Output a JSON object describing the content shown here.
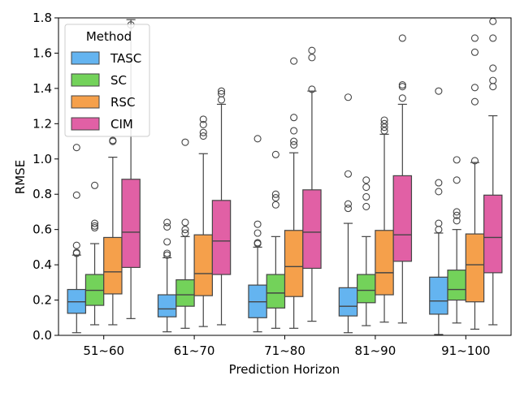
{
  "chart_data": {
    "type": "boxplot",
    "title": "",
    "xlabel": "Prediction Horizon",
    "ylabel": "RMSE",
    "ylim": [
      0,
      1.8
    ],
    "yticks": [
      "0.0",
      "0.2",
      "0.4",
      "0.6",
      "0.8",
      "1.0",
      "1.2",
      "1.4",
      "1.6",
      "1.8"
    ],
    "categories": [
      "51~60",
      "61~70",
      "71~80",
      "81~90",
      "91~100"
    ],
    "legend": {
      "title": "Method",
      "position": "top-left"
    },
    "series": [
      {
        "name": "TASC",
        "color": "#64b4f0",
        "boxes": [
          {
            "whisker_low": 0.015,
            "q1": 0.125,
            "median": 0.19,
            "q3": 0.26,
            "whisker_high": 0.455,
            "outliers": [
              0.465,
              0.47,
              0.51,
              0.795,
              1.065
            ]
          },
          {
            "whisker_low": 0.02,
            "q1": 0.105,
            "median": 0.15,
            "q3": 0.23,
            "whisker_high": 0.44,
            "outliers": [
              0.455,
              0.465,
              0.53,
              0.615,
              0.64
            ]
          },
          {
            "whisker_low": 0.02,
            "q1": 0.1,
            "median": 0.19,
            "q3": 0.285,
            "whisker_high": 0.5,
            "outliers": [
              0.52,
              0.525,
              0.58,
              0.63,
              1.115
            ]
          },
          {
            "whisker_low": 0.015,
            "q1": 0.11,
            "median": 0.165,
            "q3": 0.27,
            "whisker_high": 0.635,
            "outliers": [
              0.72,
              0.745,
              0.915,
              1.35
            ]
          },
          {
            "whisker_low": 0.005,
            "q1": 0.12,
            "median": 0.195,
            "q3": 0.33,
            "whisker_high": 0.58,
            "outliers": [
              0.6,
              0.635,
              0.815,
              0.865,
              1.385
            ]
          }
        ]
      },
      {
        "name": "SC",
        "color": "#73d25a",
        "boxes": [
          {
            "whisker_low": 0.06,
            "q1": 0.17,
            "median": 0.255,
            "q3": 0.345,
            "whisker_high": 0.52,
            "outliers": [
              0.61,
              0.62,
              0.635,
              0.85
            ]
          },
          {
            "whisker_low": 0.04,
            "q1": 0.165,
            "median": 0.23,
            "q3": 0.315,
            "whisker_high": 0.56,
            "outliers": [
              0.58,
              0.6,
              0.64,
              1.095
            ]
          },
          {
            "whisker_low": 0.04,
            "q1": 0.155,
            "median": 0.24,
            "q3": 0.345,
            "whisker_high": 0.56,
            "outliers": [
              0.74,
              0.78,
              0.8,
              1.025
            ]
          },
          {
            "whisker_low": 0.055,
            "q1": 0.185,
            "median": 0.255,
            "q3": 0.345,
            "whisker_high": 0.56,
            "outliers": [
              0.73,
              0.785,
              0.84,
              0.88
            ]
          },
          {
            "whisker_low": 0.07,
            "q1": 0.2,
            "median": 0.26,
            "q3": 0.37,
            "whisker_high": 0.6,
            "outliers": [
              0.65,
              0.68,
              0.7,
              0.88,
              0.995
            ]
          }
        ]
      },
      {
        "name": "RSC",
        "color": "#f5a04b",
        "boxes": [
          {
            "whisker_low": 0.06,
            "q1": 0.235,
            "median": 0.36,
            "q3": 0.555,
            "whisker_high": 1.01,
            "outliers": [
              1.1,
              1.105
            ]
          },
          {
            "whisker_low": 0.05,
            "q1": 0.225,
            "median": 0.35,
            "q3": 0.57,
            "whisker_high": 1.03,
            "outliers": [
              1.13,
              1.15,
              1.195,
              1.225
            ]
          },
          {
            "whisker_low": 0.04,
            "q1": 0.22,
            "median": 0.39,
            "q3": 0.595,
            "whisker_high": 1.035,
            "outliers": [
              1.08,
              1.1,
              1.16,
              1.235,
              1.555
            ]
          },
          {
            "whisker_low": 0.075,
            "q1": 0.23,
            "median": 0.355,
            "q3": 0.595,
            "whisker_high": 1.14,
            "outliers": [
              1.16,
              1.18,
              1.2,
              1.22
            ]
          },
          {
            "whisker_low": 0.035,
            "q1": 0.19,
            "median": 0.4,
            "q3": 0.575,
            "whisker_high": 0.98,
            "outliers": [
              0.99,
              1.325,
              1.405,
              1.605,
              1.685
            ]
          }
        ]
      },
      {
        "name": "CIM",
        "color": "#e160a5",
        "boxes": [
          {
            "whisker_low": 0.095,
            "q1": 0.385,
            "median": 0.585,
            "q3": 0.885,
            "whisker_high": 1.79,
            "outliers": [
              1.76
            ]
          },
          {
            "whisker_low": 0.06,
            "q1": 0.345,
            "median": 0.535,
            "q3": 0.765,
            "whisker_high": 1.31,
            "outliers": [
              1.335,
              1.37,
              1.385
            ]
          },
          {
            "whisker_low": 0.08,
            "q1": 0.38,
            "median": 0.585,
            "q3": 0.825,
            "whisker_high": 1.385,
            "outliers": [
              1.395,
              1.575,
              1.615
            ]
          },
          {
            "whisker_low": 0.07,
            "q1": 0.42,
            "median": 0.57,
            "q3": 0.905,
            "whisker_high": 1.31,
            "outliers": [
              1.345,
              1.41,
              1.42,
              1.685
            ]
          },
          {
            "whisker_low": 0.06,
            "q1": 0.355,
            "median": 0.555,
            "q3": 0.795,
            "whisker_high": 1.245,
            "outliers": [
              1.41,
              1.445,
              1.515,
              1.685,
              1.78
            ]
          }
        ]
      }
    ]
  }
}
